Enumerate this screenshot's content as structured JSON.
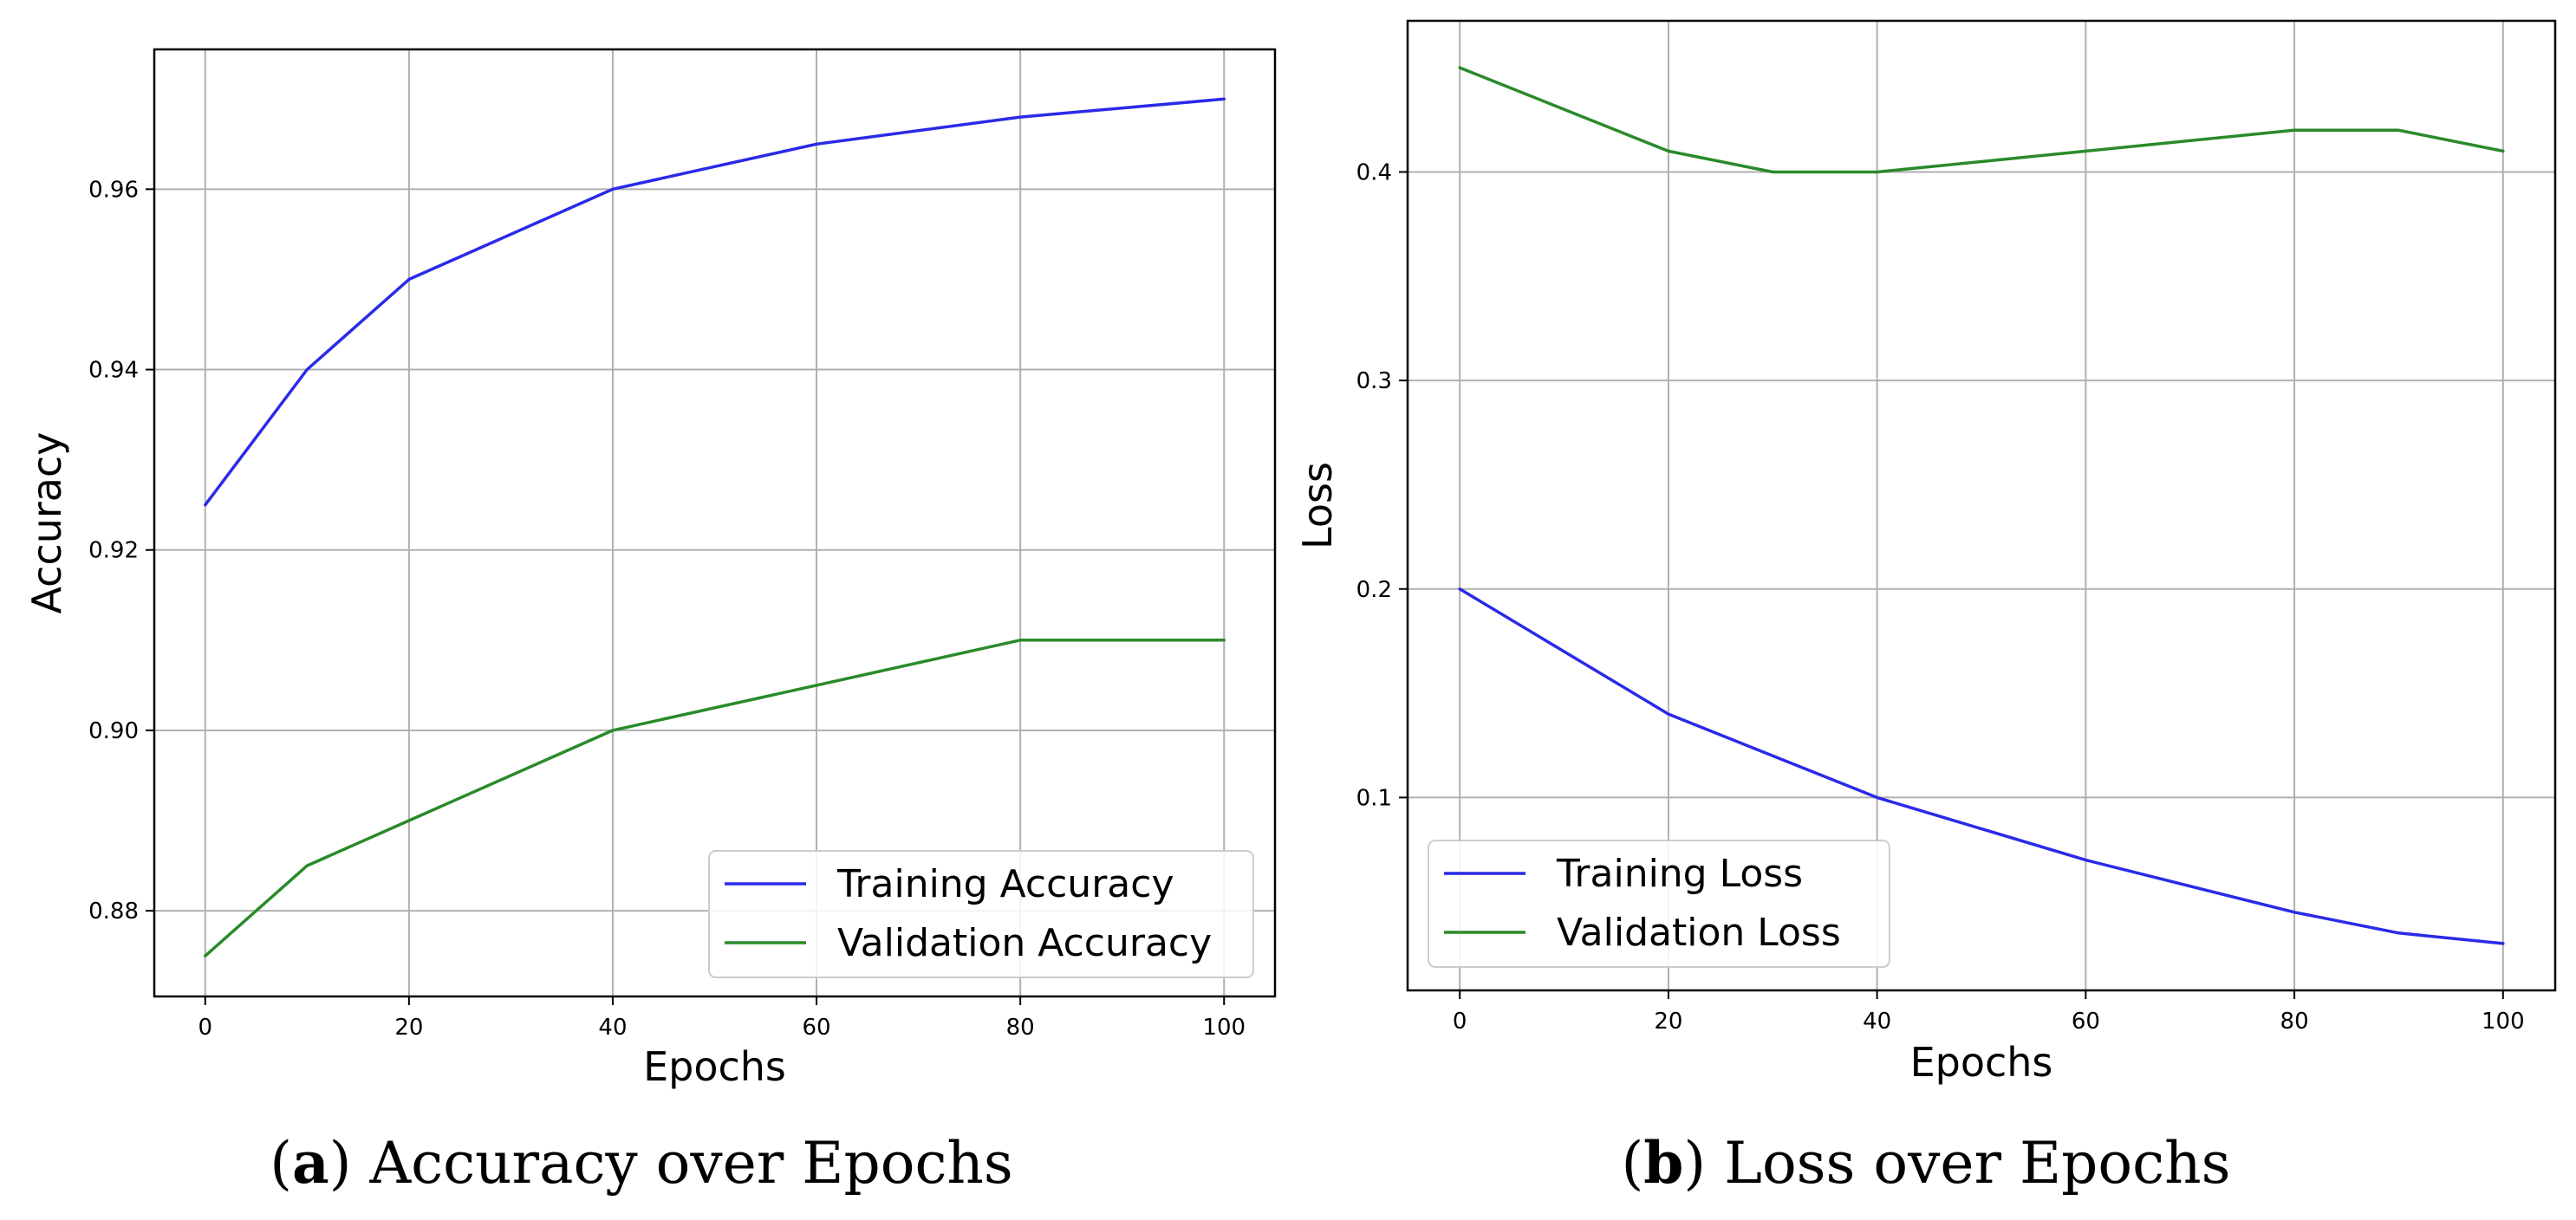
{
  "colors": {
    "training": "#2a2ae8",
    "validation": "#2a8a2a"
  },
  "chart_data": [
    {
      "type": "line",
      "title": "",
      "caption_letter": "a",
      "caption_text": "Accuracy over Epochs",
      "xlabel": "Epochs",
      "ylabel": "Accuracy",
      "xlim": [
        -5,
        105
      ],
      "ylim": [
        0.8705,
        0.9755
      ],
      "xticks": [
        0,
        20,
        40,
        60,
        80,
        100
      ],
      "xtick_labels": [
        "0",
        "20",
        "40",
        "60",
        "80",
        "100"
      ],
      "yticks": [
        0.88,
        0.9,
        0.92,
        0.94,
        0.96
      ],
      "ytick_labels": [
        "0.88",
        "0.90",
        "0.92",
        "0.94",
        "0.96"
      ],
      "grid": true,
      "legend_position": "lower-right",
      "series": [
        {
          "name": "Training Accuracy",
          "color_key": "training",
          "x": [
            0,
            10,
            20,
            40,
            60,
            80,
            100
          ],
          "y": [
            0.925,
            0.94,
            0.95,
            0.96,
            0.965,
            0.968,
            0.97
          ]
        },
        {
          "name": "Validation Accuracy",
          "color_key": "validation",
          "x": [
            0,
            10,
            20,
            40,
            60,
            80,
            100
          ],
          "y": [
            0.875,
            0.885,
            0.89,
            0.9,
            0.905,
            0.91,
            0.91
          ]
        }
      ]
    },
    {
      "type": "line",
      "title": "",
      "caption_letter": "b",
      "caption_text": "Loss over Epochs",
      "xlabel": "Epochs",
      "ylabel": "Loss",
      "xlim": [
        -5,
        105
      ],
      "ylim": [
        0.0075,
        0.4725
      ],
      "xticks": [
        0,
        20,
        40,
        60,
        80,
        100
      ],
      "xtick_labels": [
        "0",
        "20",
        "40",
        "60",
        "80",
        "100"
      ],
      "yticks": [
        0.1,
        0.2,
        0.3,
        0.4
      ],
      "ytick_labels": [
        "0.1",
        "0.2",
        "0.3",
        "0.4"
      ],
      "grid": true,
      "legend_position": "lower-left",
      "series": [
        {
          "name": "Training Loss",
          "color_key": "training",
          "x": [
            0,
            20,
            40,
            60,
            80,
            90,
            100
          ],
          "y": [
            0.2,
            0.14,
            0.1,
            0.07,
            0.045,
            0.035,
            0.03
          ]
        },
        {
          "name": "Validation Loss",
          "color_key": "validation",
          "x": [
            0,
            20,
            30,
            40,
            60,
            80,
            90,
            100
          ],
          "y": [
            0.45,
            0.41,
            0.4,
            0.4,
            0.41,
            0.42,
            0.42,
            0.41
          ]
        }
      ]
    }
  ]
}
